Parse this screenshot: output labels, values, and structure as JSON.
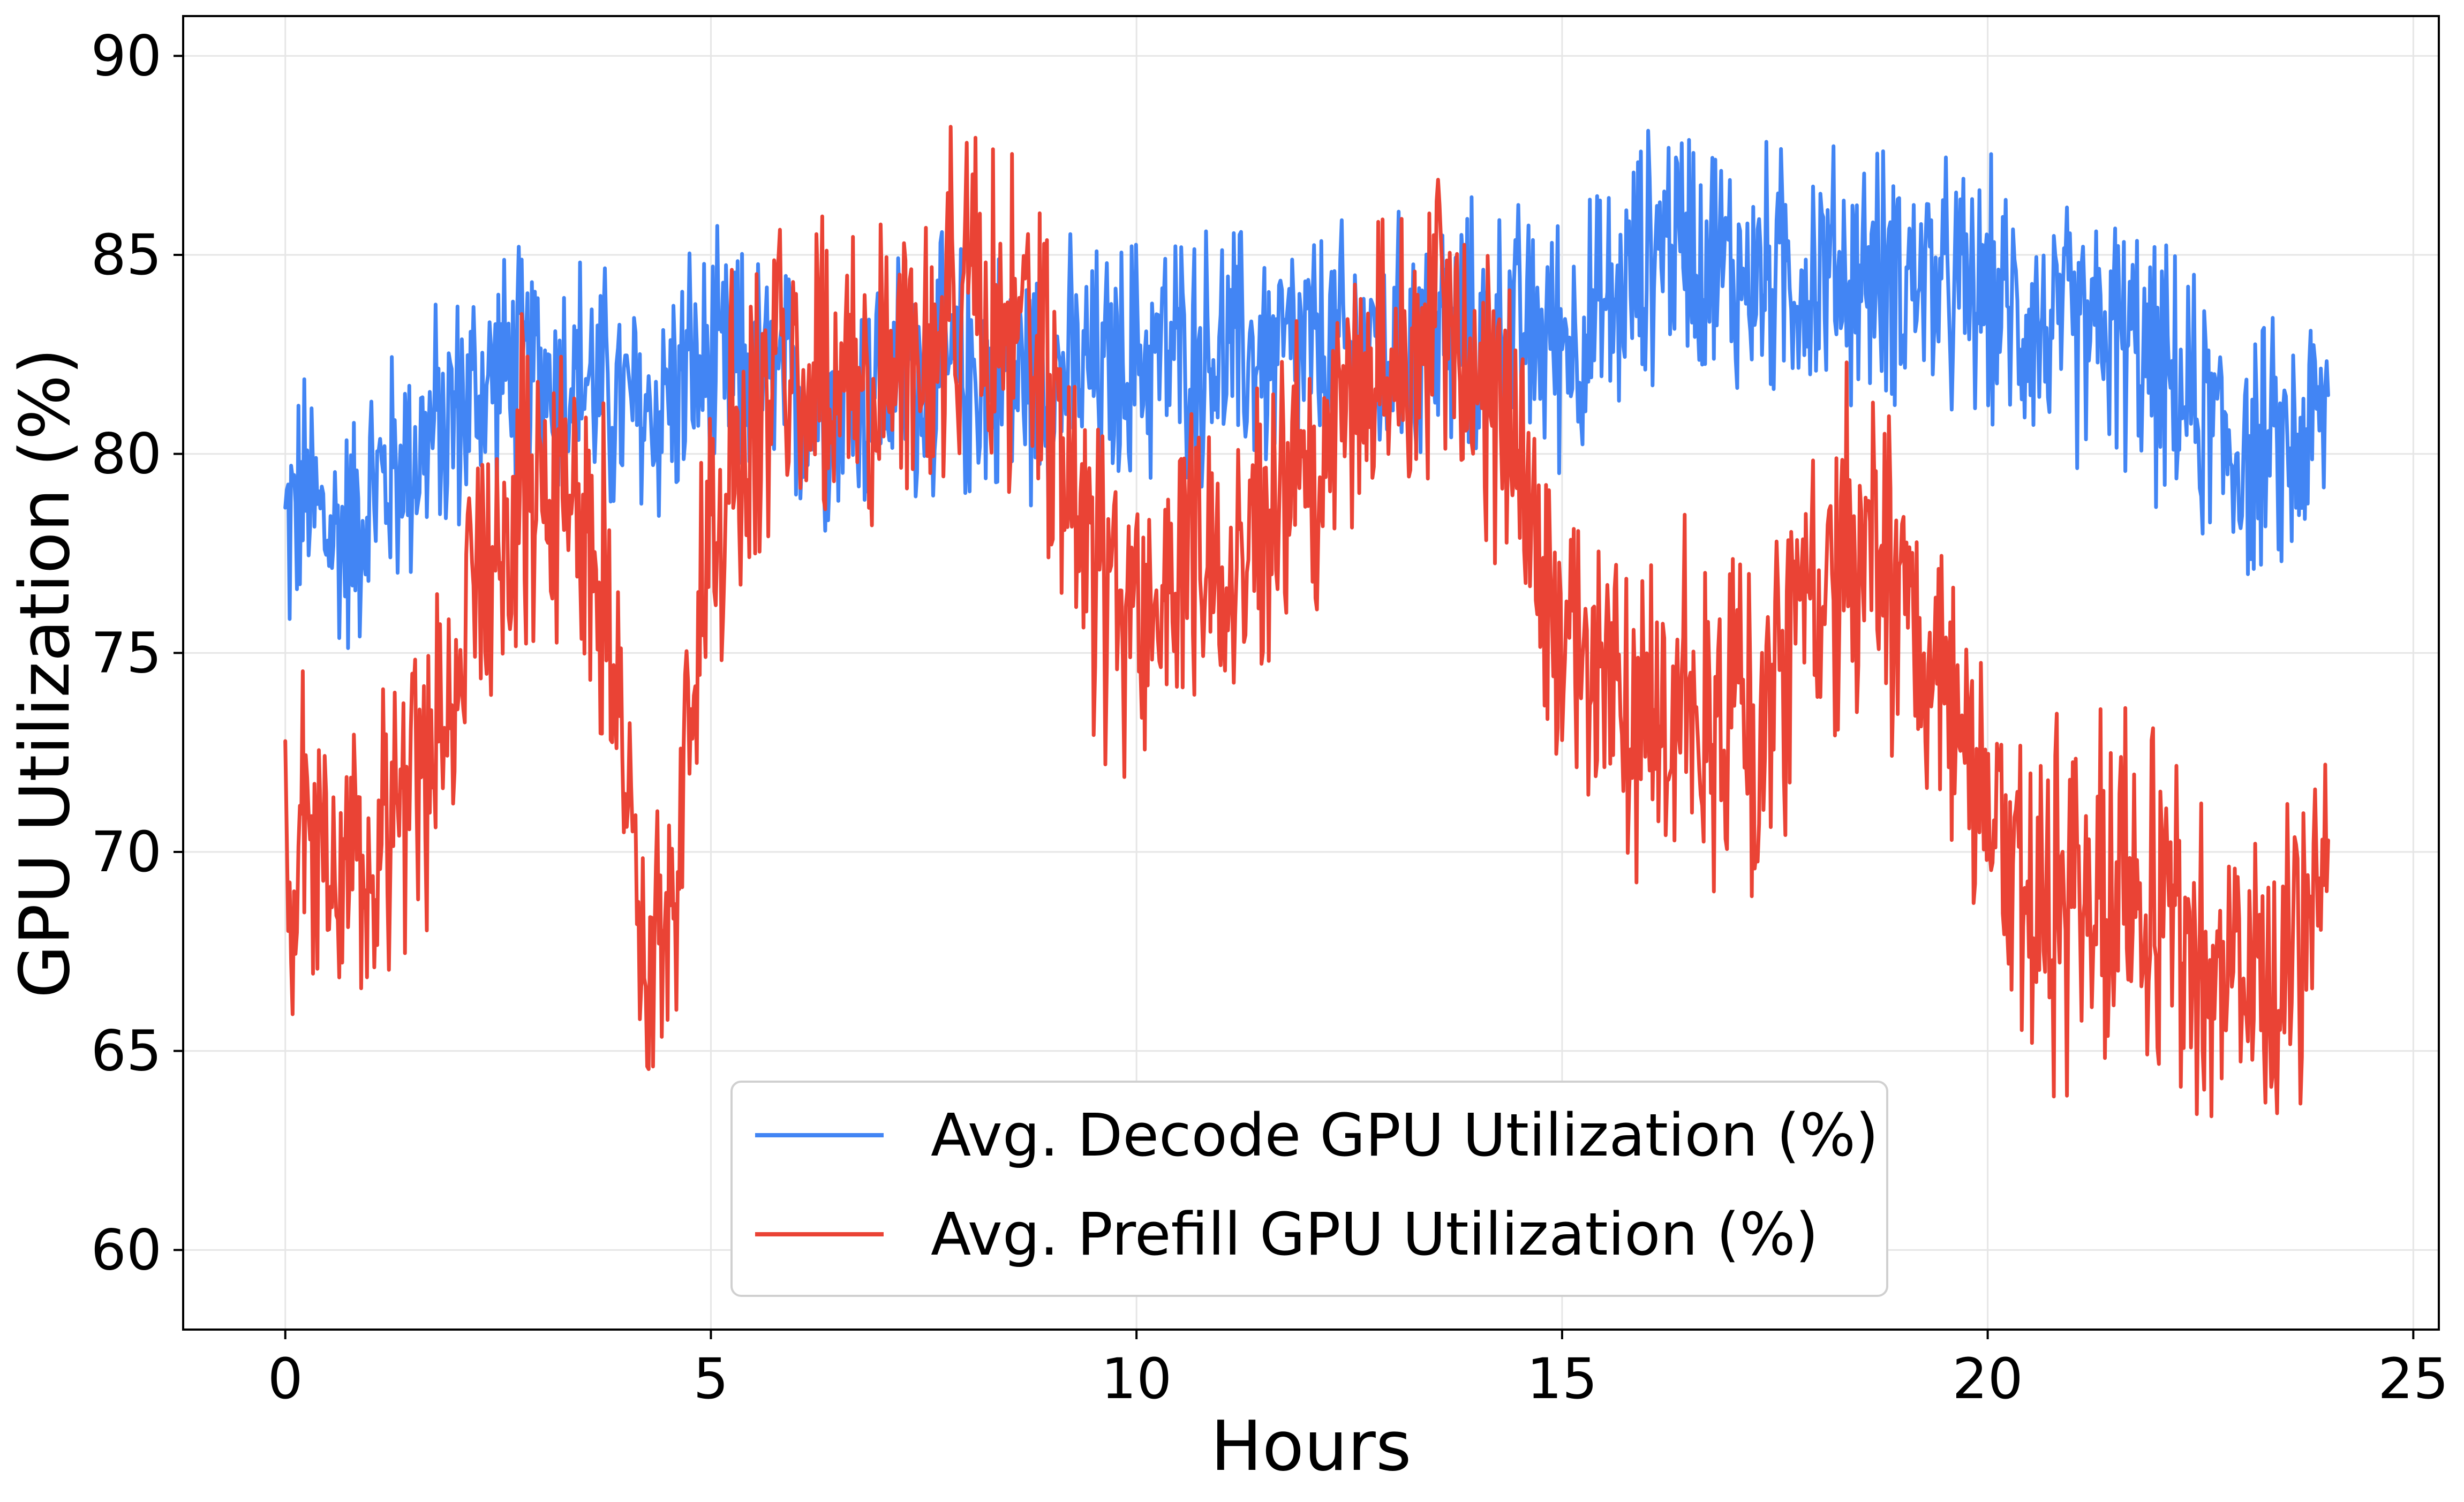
{
  "chart_data": {
    "type": "line",
    "title": "",
    "xlabel": "Hours",
    "ylabel": "GPU Utilization (%)",
    "xlim": [
      -1.2,
      25.3
    ],
    "ylim": [
      58,
      91
    ],
    "xticks": [
      0,
      5,
      10,
      15,
      20,
      25
    ],
    "yticks": [
      60,
      65,
      70,
      75,
      80,
      85,
      90
    ],
    "xtick_labels": [
      "0",
      "5",
      "10",
      "15",
      "20",
      "25"
    ],
    "ytick_labels": [
      "60",
      "65",
      "70",
      "75",
      "80",
      "85",
      "90"
    ],
    "grid": true,
    "legend_position": "bottom-center",
    "series": [
      {
        "name": "Avg. Decode GPU Utilization (%)",
        "color": "#4285f4",
        "x": [
          0,
          0.25,
          0.5,
          0.75,
          1,
          1.25,
          1.5,
          1.75,
          2,
          2.25,
          2.5,
          2.75,
          3,
          3.25,
          3.5,
          3.75,
          4,
          4.25,
          4.5,
          4.75,
          5,
          5.25,
          5.5,
          5.75,
          6,
          6.25,
          6.5,
          6.75,
          7,
          7.25,
          7.5,
          7.75,
          8,
          8.25,
          8.5,
          8.75,
          9,
          9.25,
          9.5,
          9.75,
          10,
          10.25,
          10.5,
          10.75,
          11,
          11.25,
          11.5,
          11.75,
          12,
          12.25,
          12.5,
          12.75,
          13,
          13.25,
          13.5,
          13.75,
          14,
          14.25,
          14.5,
          14.75,
          15,
          15.25,
          15.5,
          15.75,
          16,
          16.25,
          16.5,
          16.75,
          17,
          17.25,
          17.5,
          17.75,
          18,
          18.25,
          18.5,
          18.75,
          19,
          19.25,
          19.5,
          19.75,
          20,
          20.25,
          20.5,
          20.75,
          21,
          21.25,
          21.5,
          21.75,
          22,
          22.25,
          22.5,
          22.75,
          23,
          23.25,
          23.5,
          23.75,
          24
        ],
        "values": [
          78,
          79,
          78,
          78,
          79,
          79.5,
          80,
          80.5,
          81,
          81.5,
          82,
          82,
          82,
          82,
          82,
          81.5,
          81,
          81,
          81.5,
          82,
          82,
          82,
          82,
          81.5,
          81.5,
          81.5,
          81.5,
          81.5,
          82,
          82,
          82,
          82,
          82,
          82,
          82,
          82,
          82,
          82,
          82,
          82,
          82.5,
          82.5,
          82.5,
          82.5,
          82.5,
          82.5,
          82.5,
          82.5,
          82.5,
          82.5,
          82.5,
          82.5,
          82.5,
          83,
          83,
          83,
          83,
          83,
          83,
          83,
          83,
          83,
          83.5,
          84,
          85,
          85.5,
          85.5,
          85,
          84.5,
          84.5,
          84.5,
          84.5,
          84.5,
          84.5,
          84.5,
          84.5,
          84.5,
          84.5,
          84,
          84,
          84,
          83.5,
          83.5,
          83,
          83,
          83,
          83,
          82.5,
          82,
          81.5,
          81,
          80.5,
          80,
          80,
          80,
          80.5,
          81
        ]
      },
      {
        "name": "Avg. Prefill GPU Utilization (%)",
        "color": "#ea4335",
        "x": [
          0,
          0.25,
          0.5,
          0.75,
          1,
          1.25,
          1.5,
          1.75,
          2,
          2.25,
          2.5,
          2.75,
          3,
          3.25,
          3.5,
          3.75,
          4,
          4.25,
          4.5,
          4.75,
          5,
          5.25,
          5.5,
          5.75,
          6,
          6.25,
          6.5,
          6.75,
          7,
          7.25,
          7.5,
          7.75,
          8,
          8.25,
          8.5,
          8.75,
          9,
          9.25,
          9.5,
          9.75,
          10,
          10.25,
          10.5,
          10.75,
          11,
          11.25,
          11.5,
          11.75,
          12,
          12.25,
          12.5,
          12.75,
          13,
          13.25,
          13.5,
          13.75,
          14,
          14.25,
          14.5,
          14.75,
          15,
          15.25,
          15.5,
          15.75,
          16,
          16.25,
          16.5,
          16.75,
          17,
          17.25,
          17.5,
          17.75,
          18,
          18.25,
          18.5,
          18.75,
          19,
          19.25,
          19.5,
          19.75,
          20,
          20.25,
          20.5,
          20.75,
          21,
          21.25,
          21.5,
          21.75,
          22,
          22.25,
          22.5,
          22.75,
          23,
          23.25,
          23.5,
          23.75,
          24
        ],
        "values": [
          69,
          70,
          70,
          70,
          70,
          71,
          72,
          73,
          74.5,
          76,
          77.5,
          78.5,
          79.5,
          80,
          79.5,
          77,
          72,
          66,
          68,
          74,
          78,
          80,
          81,
          82,
          82,
          82,
          81.5,
          81.5,
          82,
          82.5,
          83,
          83.5,
          83.5,
          83.5,
          83,
          82.5,
          81.5,
          79,
          77,
          76,
          76,
          76.5,
          77,
          77.5,
          78,
          78,
          78.5,
          79,
          79.5,
          80.5,
          81.5,
          82,
          82.5,
          83,
          83.5,
          83,
          82.5,
          81.5,
          80,
          77,
          75,
          74,
          74,
          74,
          74,
          74,
          73.5,
          73,
          73,
          73,
          74,
          75,
          77,
          77.5,
          78,
          77.5,
          76.5,
          75,
          73.5,
          72,
          70.5,
          69.5,
          69,
          68.5,
          68.5,
          69,
          69,
          69,
          68.5,
          68,
          67.5,
          67,
          67,
          66.5,
          67,
          68,
          71
        ]
      }
    ]
  }
}
